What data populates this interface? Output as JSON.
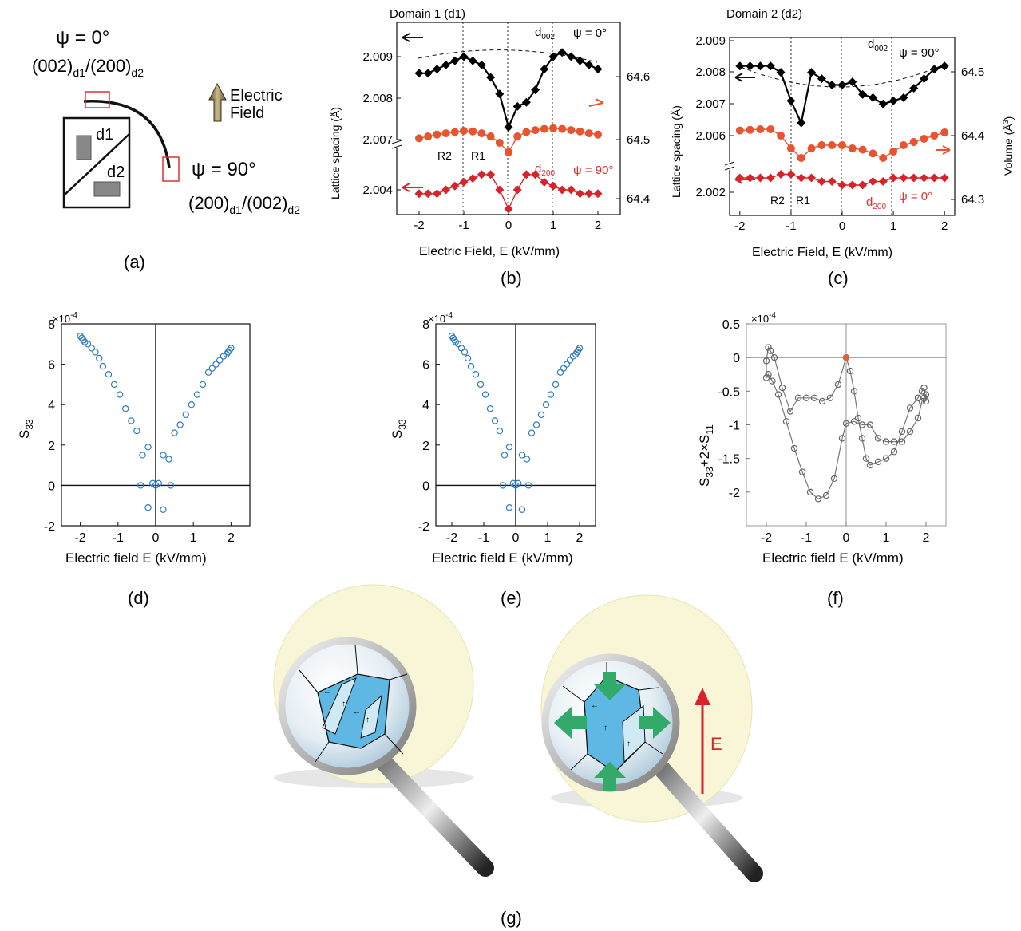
{
  "panel_a": {
    "psi0": "ψ = 0°",
    "plane_top": "(002)",
    "sub_d1": "d1",
    "slash": "/",
    "plane_top2": "(200)",
    "sub_d2": "d2",
    "psi90": "ψ = 90°",
    "plane_bot": "(200)",
    "plane_bot2": "(002)",
    "field_line1": "Electric",
    "field_line2": "Field",
    "d1": "d1",
    "d2": "d2",
    "label": "(a)"
  },
  "panel_b": {
    "title": "Domain 1 (d1)",
    "label": "(b)",
    "d002_base": "d",
    "d002_sub": "002",
    "psi_top": "ψ = 0°",
    "d200_base": "d",
    "d200_sub": "200",
    "psi_bot": "ψ = 90°",
    "R2": "R2",
    "R1": "R1"
  },
  "panel_c": {
    "title": "Domain 2 (d2)",
    "label": "(c)",
    "d002_base": "d",
    "d002_sub": "002",
    "psi_top": "ψ = 90°",
    "d200_base": "d",
    "d200_sub": "200",
    "psi_bot": "ψ = 0°",
    "R2": "R2",
    "R1": "R1"
  },
  "panel_d": {
    "label": "(d)"
  },
  "panel_e": {
    "label": "(e)"
  },
  "panel_f": {
    "label": "(f)"
  },
  "panel_g": {
    "label": "(g)",
    "field": "E"
  },
  "chart_data": [
    {
      "id": "b",
      "type": "scatter",
      "xlabel": "Electric Field, E (kV/mm)",
      "ylabel": "Lattice spacing (Å)",
      "xlim": [
        -2.5,
        2.5
      ],
      "xticks": [
        "-2",
        "-1",
        "0",
        "1",
        "2"
      ],
      "yticks_left": [
        "2.009",
        "2.008",
        "2.007",
        "2.004"
      ],
      "yticks_right": [
        "64.6",
        "64.5",
        "64.4"
      ],
      "series": [
        {
          "color": "#000000",
          "x": [
            -2,
            -1.8,
            -1.6,
            -1.4,
            -1.2,
            -1,
            -0.8,
            -0.6,
            -0.4,
            -0.2,
            0,
            0.2,
            0.4,
            0.6,
            0.8,
            1,
            1.2,
            1.4,
            1.6,
            1.8,
            2
          ],
          "y": [
            2.0086,
            2.0086,
            2.0087,
            2.0088,
            2.0089,
            2.009,
            2.0089,
            2.0088,
            2.0085,
            2.0081,
            2.0073,
            2.0078,
            2.0079,
            2.0082,
            2.0087,
            2.009,
            2.0091,
            2.009,
            2.0089,
            2.0088,
            2.0087
          ]
        },
        {
          "color": "#e8542f",
          "x": [
            -2,
            -1.8,
            -1.6,
            -1.4,
            -1.2,
            -1,
            -0.8,
            -0.6,
            -0.4,
            -0.2,
            0,
            0.2,
            0.4,
            0.6,
            0.8,
            1,
            1.2,
            1.4,
            1.6,
            1.8,
            2
          ],
          "y": [
            64.502,
            64.505,
            64.508,
            64.51,
            64.512,
            64.514,
            64.513,
            64.51,
            64.505,
            64.495,
            64.48,
            64.505,
            64.512,
            64.515,
            64.517,
            64.518,
            64.517,
            64.515,
            64.513,
            64.51,
            64.508
          ]
        },
        {
          "color": "#d8232a",
          "x": [
            -2,
            -1.8,
            -1.6,
            -1.4,
            -1.2,
            -1,
            -0.8,
            -0.6,
            -0.4,
            -0.2,
            0,
            0.2,
            0.4,
            0.6,
            0.8,
            1,
            1.2,
            1.4,
            1.6,
            1.8,
            2
          ],
          "y": [
            2.0039,
            2.0039,
            2.0039,
            2.004,
            2.0041,
            2.0042,
            2.0043,
            2.0044,
            2.0044,
            2.004,
            2.0035,
            2.004,
            2.0044,
            2.0044,
            2.0042,
            2.0041,
            2.004,
            2.004,
            2.0039,
            2.0039,
            2.0039
          ]
        }
      ]
    },
    {
      "id": "c",
      "type": "scatter",
      "xlabel": "Electric Field, E (kV/mm)",
      "ylabel": "Lattice spacing (Å)",
      "ylabel_right": "Volume (Å",
      "ylabel_right_sup": "3",
      "ylabel_right_end": ")",
      "xlim": [
        -2.2,
        2.2
      ],
      "xticks": [
        "-2",
        "-1",
        "0",
        "1",
        "2"
      ],
      "yticks_left": [
        "2.009",
        "2.008",
        "2.007",
        "2.006",
        "2.002"
      ],
      "yticks_right": [
        "64.5",
        "64.4",
        "64.3"
      ],
      "series": [
        {
          "color": "#000000",
          "x": [
            -2,
            -1.8,
            -1.6,
            -1.4,
            -1.2,
            -1,
            -0.8,
            -0.6,
            -0.4,
            -0.2,
            0,
            0.2,
            0.4,
            0.6,
            0.8,
            1,
            1.2,
            1.4,
            1.6,
            1.8,
            2
          ],
          "y": [
            2.0082,
            2.0082,
            2.0082,
            2.0082,
            2.008,
            2.0071,
            2.0064,
            2.008,
            2.0078,
            2.0076,
            2.0076,
            2.0077,
            2.0073,
            2.0072,
            2.007,
            2.0071,
            2.0072,
            2.0075,
            2.0078,
            2.0081,
            2.0082
          ]
        },
        {
          "color": "#e8542f",
          "x": [
            -2,
            -1.8,
            -1.6,
            -1.4,
            -1.2,
            -1,
            -0.8,
            -0.6,
            -0.4,
            -0.2,
            0,
            0.2,
            0.4,
            0.6,
            0.8,
            1,
            1.2,
            1.4,
            1.6,
            1.8,
            2
          ],
          "y": [
            64.408,
            64.409,
            64.41,
            64.41,
            64.4,
            64.38,
            64.365,
            64.38,
            64.385,
            64.385,
            64.385,
            64.38,
            64.378,
            64.372,
            64.365,
            64.375,
            64.385,
            64.39,
            64.395,
            64.4,
            64.405
          ]
        },
        {
          "color": "#d8232a",
          "x": [
            -2,
            -1.8,
            -1.6,
            -1.4,
            -1.2,
            -1,
            -0.8,
            -0.6,
            -0.4,
            -0.2,
            0,
            0.2,
            0.4,
            0.6,
            0.8,
            1,
            1.2,
            1.4,
            1.6,
            1.8,
            2
          ],
          "y": [
            2.0024,
            2.0024,
            2.0024,
            2.0024,
            2.0025,
            2.0025,
            2.0024,
            2.0024,
            2.0023,
            2.0023,
            2.0022,
            2.0022,
            2.0022,
            2.0023,
            2.0023,
            2.0024,
            2.0024,
            2.0024,
            2.0024,
            2.0024,
            2.0024
          ]
        }
      ]
    },
    {
      "id": "d",
      "type": "scatter",
      "xlabel": "Electric field E (kV/mm)",
      "ylabel": "S",
      "ylabel_sub": "33",
      "multiplier": "×10",
      "multiplier_exp": "-4",
      "xlim": [
        -2.5,
        2.5
      ],
      "ylim": [
        -2,
        8
      ],
      "xticks": [
        -2,
        -1,
        0,
        1,
        2
      ],
      "yticks": [
        -2,
        0,
        2,
        4,
        6,
        8
      ],
      "x": [
        -2,
        -1.96,
        -1.92,
        -1.88,
        -1.8,
        -1.7,
        -1.6,
        -1.5,
        -1.4,
        -1.25,
        -1.1,
        -0.95,
        -0.8,
        -0.65,
        -0.5,
        -0.35,
        -0.2,
        -0.08,
        0,
        0.08,
        0.2,
        0.35,
        0.5,
        0.65,
        0.8,
        0.95,
        1.1,
        1.25,
        1.4,
        1.5,
        1.6,
        1.7,
        1.8,
        1.88,
        1.92,
        1.96,
        2,
        -0.4,
        -0.2,
        0.2,
        0.4
      ],
      "y": [
        7.4,
        7.3,
        7.2,
        7.1,
        7.0,
        6.8,
        6.6,
        6.3,
        5.9,
        5.5,
        5.0,
        4.5,
        3.8,
        3.2,
        2.7,
        1.5,
        1.9,
        0.1,
        0,
        0.1,
        1.5,
        1.3,
        2.6,
        3.0,
        3.5,
        4.0,
        4.5,
        5.0,
        5.6,
        5.8,
        6.0,
        6.2,
        6.4,
        6.5,
        6.6,
        6.7,
        6.8,
        0,
        -1.1,
        -1.2,
        0
      ]
    },
    {
      "id": "e",
      "type": "scatter",
      "xlabel": "Electric field E (kV/mm)",
      "ylabel": "S",
      "ylabel_sub": "33",
      "multiplier": "×10",
      "multiplier_exp": "-4",
      "xlim": [
        -2.5,
        2.5
      ],
      "ylim": [
        -2,
        8
      ],
      "xticks": [
        -2,
        -1,
        0,
        1,
        2
      ],
      "yticks": [
        -2,
        0,
        2,
        4,
        6,
        8
      ],
      "x": [
        -2,
        -1.96,
        -1.92,
        -1.88,
        -1.8,
        -1.7,
        -1.6,
        -1.5,
        -1.4,
        -1.25,
        -1.1,
        -0.95,
        -0.8,
        -0.65,
        -0.5,
        -0.35,
        -0.2,
        -0.08,
        0,
        0.08,
        0.2,
        0.35,
        0.5,
        0.65,
        0.8,
        0.95,
        1.1,
        1.25,
        1.4,
        1.5,
        1.6,
        1.7,
        1.8,
        1.88,
        1.92,
        1.96,
        2,
        -0.4,
        -0.2,
        0.2,
        0.4
      ],
      "y": [
        7.4,
        7.3,
        7.2,
        7.1,
        7.0,
        6.8,
        6.6,
        6.3,
        5.9,
        5.5,
        5.0,
        4.5,
        3.8,
        3.2,
        2.7,
        1.5,
        1.9,
        0.1,
        0,
        0.1,
        1.5,
        1.3,
        2.6,
        3.0,
        3.5,
        4.0,
        4.5,
        5.0,
        5.6,
        5.8,
        6.0,
        6.2,
        6.4,
        6.5,
        6.6,
        6.7,
        6.8,
        0,
        -1.1,
        -1.2,
        0
      ]
    },
    {
      "id": "f",
      "type": "line",
      "xlabel": "Electric field E (kV/mm)",
      "ylabel_p1": "S",
      "ylabel_sub1": "33",
      "ylabel_p2": "+2×S",
      "ylabel_sub2": "11",
      "multiplier": "×10",
      "multiplier_exp": "-4",
      "xlim": [
        -2.5,
        2.5
      ],
      "ylim": [
        -2.5,
        0.5
      ],
      "xticks": [
        -2,
        -1,
        0,
        1,
        2
      ],
      "yticks": [
        -2,
        -1.5,
        -1,
        -0.5,
        0,
        0.5
      ],
      "x": [
        0,
        0.1,
        0.2,
        0.3,
        0.4,
        0.5,
        0.6,
        0.8,
        1.0,
        1.2,
        1.4,
        1.6,
        1.8,
        1.9,
        1.95,
        2,
        2,
        1.95,
        1.9,
        1.8,
        1.6,
        1.4,
        1.2,
        1.0,
        0.8,
        0.6,
        0.4,
        0.2,
        0,
        -0.1,
        -0.3,
        -0.5,
        -0.7,
        -0.9,
        -1.1,
        -1.3,
        -1.5,
        -1.7,
        -1.85,
        -1.95,
        -2,
        -2,
        -1.95,
        -1.9,
        -1.8,
        -1.6,
        -1.4,
        -1.2,
        -1.0,
        -0.8,
        -0.6,
        -0.4,
        -0.2,
        0
      ],
      "y": [
        0,
        -0.2,
        -0.5,
        -0.9,
        -1.2,
        -1.5,
        -1.6,
        -1.55,
        -1.5,
        -1.4,
        -1.1,
        -0.75,
        -0.6,
        -0.5,
        -0.45,
        -0.65,
        -0.55,
        -0.6,
        -0.65,
        -0.9,
        -1.1,
        -1.25,
        -1.25,
        -1.25,
        -1.2,
        -1.0,
        -1.0,
        -0.95,
        -0.98,
        -1.2,
        -1.8,
        -2.05,
        -2.1,
        -2.0,
        -1.7,
        -1.35,
        -0.95,
        -0.55,
        -0.35,
        -0.25,
        -0.3,
        -0.05,
        0.15,
        0.1,
        0,
        -0.45,
        -0.8,
        -0.6,
        -0.6,
        -0.6,
        -0.65,
        -0.6,
        -0.4,
        0
      ]
    }
  ]
}
